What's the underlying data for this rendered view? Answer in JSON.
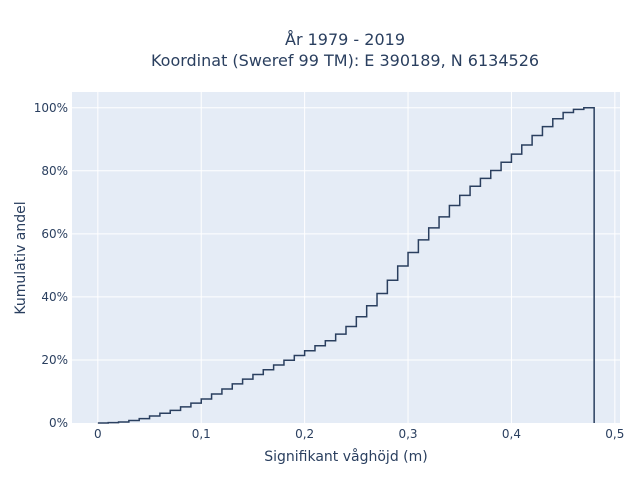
{
  "chart_data": {
    "type": "line",
    "line_shape": "step",
    "title": [
      "År 1979 - 2019",
      "Koordinat (Sweref 99 TM): E 390189, N 6134526"
    ],
    "xlabel": "Signifikant våghöjd (m)",
    "ylabel": "Kumulativ andel",
    "xlim": [
      -0.025,
      0.505
    ],
    "ylim": [
      0,
      1.05
    ],
    "xticks": [
      0,
      0.1,
      0.2,
      0.3,
      0.4,
      0.5
    ],
    "xtick_labels": [
      "0",
      "0,1",
      "0,2",
      "0,3",
      "0,4",
      "0,5"
    ],
    "yticks": [
      0,
      0.2,
      0.4,
      0.6,
      0.8,
      1.0
    ],
    "ytick_labels": [
      "0%",
      "20%",
      "40%",
      "60%",
      "80%",
      "100%"
    ],
    "grid": true,
    "legend": "none",
    "colors": {
      "plot_bg": "#e5ecf6",
      "grid": "#ffffff",
      "line": "#2a3f5f",
      "text": "#2a3f5f"
    },
    "series": [
      {
        "x": [
          0,
          0.01,
          0.02,
          0.03,
          0.04,
          0.05,
          0.06,
          0.07,
          0.08,
          0.09,
          0.1,
          0.11,
          0.12,
          0.13,
          0.14,
          0.15,
          0.16,
          0.17,
          0.18,
          0.19,
          0.2,
          0.21,
          0.22,
          0.23,
          0.24,
          0.25,
          0.26,
          0.27,
          0.28,
          0.29,
          0.3,
          0.31,
          0.32,
          0.33,
          0.34,
          0.35,
          0.36,
          0.37,
          0.38,
          0.39,
          0.4,
          0.41,
          0.42,
          0.43,
          0.44,
          0.45,
          0.46,
          0.47,
          0.48
        ],
        "y": [
          0,
          0.001,
          0.003,
          0.008,
          0.014,
          0.022,
          0.031,
          0.04,
          0.051,
          0.063,
          0.076,
          0.092,
          0.108,
          0.124,
          0.139,
          0.154,
          0.169,
          0.184,
          0.199,
          0.214,
          0.229,
          0.245,
          0.261,
          0.282,
          0.306,
          0.337,
          0.372,
          0.411,
          0.453,
          0.498,
          0.541,
          0.581,
          0.619,
          0.654,
          0.69,
          0.722,
          0.751,
          0.776,
          0.801,
          0.827,
          0.853,
          0.882,
          0.912,
          0.94,
          0.965,
          0.985,
          0.995,
          1.0,
          1.0
        ]
      }
    ]
  }
}
